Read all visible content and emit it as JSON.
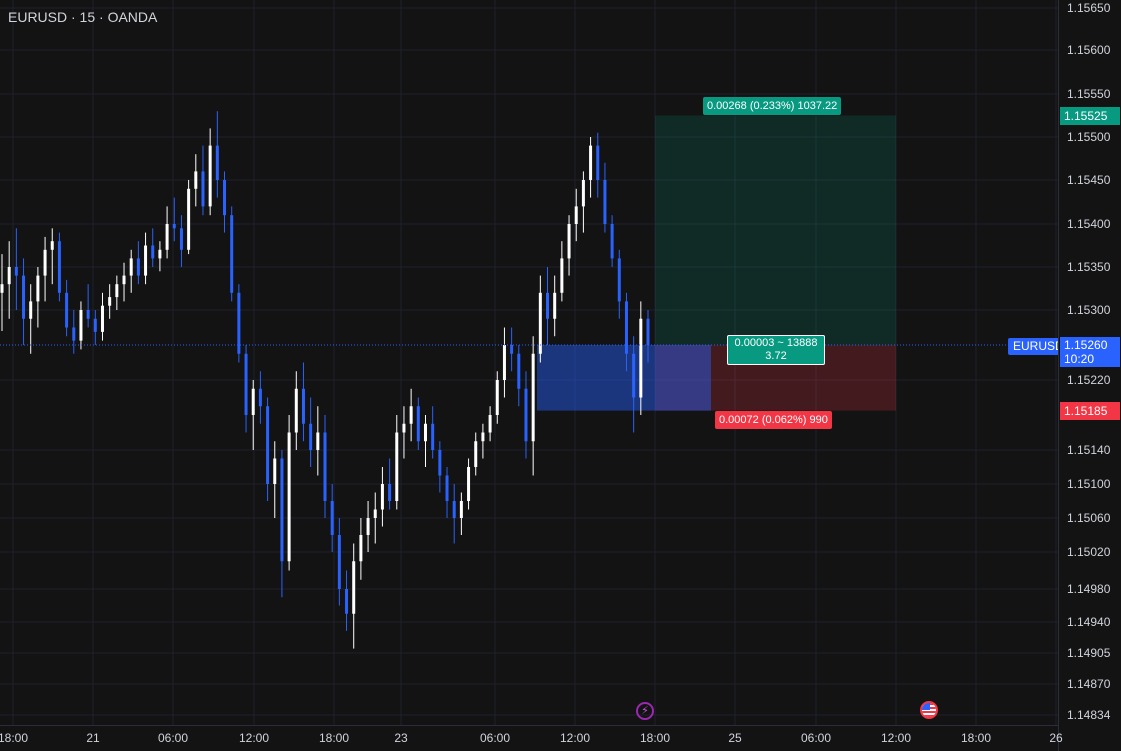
{
  "header": {
    "symbol_title": "EURUSD · 15 · OANDA"
  },
  "price_axis": {
    "ticks": [
      "1.15650",
      "1.15600",
      "1.15550",
      "1.15500",
      "1.15450",
      "1.15400",
      "1.15350",
      "1.15300",
      "1.15220",
      "1.15140",
      "1.15100",
      "1.15060",
      "1.15020",
      "1.14980",
      "1.14940",
      "1.14905",
      "1.14870",
      "1.14834"
    ],
    "target_badge": "1.15525",
    "last_price": "1.15260",
    "countdown": "10:20",
    "stop_badge": "1.15185"
  },
  "time_axis": {
    "ticks": [
      "18:00",
      "21",
      "06:00",
      "12:00",
      "18:00",
      "23",
      "06:00",
      "12:00",
      "18:00",
      "25",
      "06:00",
      "12:00",
      "18:00",
      "26"
    ]
  },
  "position_tool": {
    "target_label": "0.00268 (0.233%) 1037.22",
    "mid_label_line1": "0.00003 ~ 13888",
    "mid_label_line2": "3.72",
    "stop_label": "0.00072 (0.062%) 990"
  },
  "symbol_tag": "EURUSD",
  "events": {
    "bolt_icon": "lightning-icon",
    "flag_icon": "us-flag-icon"
  },
  "colors": {
    "bull": "#ffffff",
    "bear": "#2962ff",
    "target": "#089981",
    "stop": "#f23645",
    "last": "#2962ff"
  },
  "candles": [
    [
      1.1532,
      1.15365,
      1.15276,
      1.1533
    ],
    [
      1.1533,
      1.1538,
      1.1529,
      1.1535
    ],
    [
      1.1535,
      1.15395,
      1.153,
      1.1534
    ],
    [
      1.1534,
      1.1536,
      1.1526,
      1.1529
    ],
    [
      1.1529,
      1.1533,
      1.1525,
      1.1531
    ],
    [
      1.1531,
      1.1535,
      1.1528,
      1.1534
    ],
    [
      1.1534,
      1.15385,
      1.1531,
      1.1537
    ],
    [
      1.1537,
      1.15395,
      1.1533,
      1.1538
    ],
    [
      1.1538,
      1.1539,
      1.1531,
      1.1532
    ],
    [
      1.1532,
      1.15335,
      1.1527,
      1.1528
    ],
    [
      1.1528,
      1.153,
      1.1525,
      1.15265
    ],
    [
      1.15265,
      1.1531,
      1.15255,
      1.153
    ],
    [
      1.153,
      1.1533,
      1.1528,
      1.1529
    ],
    [
      1.1529,
      1.153,
      1.1526,
      1.15275
    ],
    [
      1.15275,
      1.1532,
      1.15265,
      1.15305
    ],
    [
      1.15305,
      1.1533,
      1.1529,
      1.15315
    ],
    [
      1.15315,
      1.1534,
      1.153,
      1.1533
    ],
    [
      1.1533,
      1.15355,
      1.1531,
      1.1534
    ],
    [
      1.1534,
      1.1537,
      1.1532,
      1.1536
    ],
    [
      1.1536,
      1.1538,
      1.1533,
      1.1534
    ],
    [
      1.1534,
      1.1539,
      1.1533,
      1.15375
    ],
    [
      1.15375,
      1.15395,
      1.1535,
      1.1536
    ],
    [
      1.1536,
      1.1538,
      1.15345,
      1.1537
    ],
    [
      1.1537,
      1.1542,
      1.1536,
      1.154
    ],
    [
      1.154,
      1.1543,
      1.1538,
      1.15395
    ],
    [
      1.15395,
      1.1541,
      1.1535,
      1.1537
    ],
    [
      1.1537,
      1.1545,
      1.15365,
      1.1544
    ],
    [
      1.1544,
      1.1548,
      1.1542,
      1.1546
    ],
    [
      1.1546,
      1.1549,
      1.1541,
      1.1542
    ],
    [
      1.1542,
      1.1551,
      1.1541,
      1.1549
    ],
    [
      1.1549,
      1.1553,
      1.1543,
      1.1545
    ],
    [
      1.1545,
      1.1546,
      1.1539,
      1.1541
    ],
    [
      1.1541,
      1.1542,
      1.1531,
      1.1532
    ],
    [
      1.1532,
      1.1533,
      1.1524,
      1.1525
    ],
    [
      1.1525,
      1.1526,
      1.1516,
      1.1518
    ],
    [
      1.1518,
      1.1522,
      1.1514,
      1.1521
    ],
    [
      1.1521,
      1.1523,
      1.1517,
      1.1519
    ],
    [
      1.1519,
      1.152,
      1.1508,
      1.151
    ],
    [
      1.151,
      1.1515,
      1.1506,
      1.1513
    ],
    [
      1.1513,
      1.1514,
      1.1497,
      1.1501
    ],
    [
      1.1501,
      1.1518,
      1.15,
      1.1516
    ],
    [
      1.1516,
      1.1523,
      1.1514,
      1.1521
    ],
    [
      1.1521,
      1.1524,
      1.1515,
      1.1517
    ],
    [
      1.1517,
      1.152,
      1.1512,
      1.1514
    ],
    [
      1.1514,
      1.1519,
      1.1511,
      1.1516
    ],
    [
      1.1516,
      1.1518,
      1.1506,
      1.1508
    ],
    [
      1.1508,
      1.151,
      1.1502,
      1.1504
    ],
    [
      1.1504,
      1.1506,
      1.1496,
      1.1498
    ],
    [
      1.1498,
      1.15,
      1.1493,
      1.1495
    ],
    [
      1.1495,
      1.1503,
      1.1491,
      1.1501
    ],
    [
      1.1501,
      1.1506,
      1.1499,
      1.1504
    ],
    [
      1.1504,
      1.1508,
      1.1502,
      1.1506
    ],
    [
      1.1506,
      1.1509,
      1.1503,
      1.1507
    ],
    [
      1.1507,
      1.1512,
      1.1505,
      1.151
    ],
    [
      1.151,
      1.1513,
      1.1507,
      1.1508
    ],
    [
      1.1508,
      1.1518,
      1.1507,
      1.1516
    ],
    [
      1.1516,
      1.1519,
      1.1513,
      1.1517
    ],
    [
      1.1517,
      1.1521,
      1.1515,
      1.1519
    ],
    [
      1.1519,
      1.152,
      1.1514,
      1.1515
    ],
    [
      1.1515,
      1.1518,
      1.1512,
      1.1517
    ],
    [
      1.1517,
      1.1519,
      1.1513,
      1.1514
    ],
    [
      1.1514,
      1.1515,
      1.1509,
      1.1511
    ],
    [
      1.1511,
      1.1512,
      1.1506,
      1.1508
    ],
    [
      1.1508,
      1.151,
      1.1503,
      1.1506
    ],
    [
      1.1506,
      1.1509,
      1.1504,
      1.1508
    ],
    [
      1.1508,
      1.1513,
      1.1507,
      1.1512
    ],
    [
      1.1512,
      1.1516,
      1.1511,
      1.1515
    ],
    [
      1.1515,
      1.1517,
      1.1513,
      1.1516
    ],
    [
      1.1516,
      1.1519,
      1.1515,
      1.1518
    ],
    [
      1.1518,
      1.1523,
      1.1517,
      1.1522
    ],
    [
      1.1522,
      1.1528,
      1.152,
      1.1526
    ],
    [
      1.1526,
      1.1528,
      1.1523,
      1.1525
    ],
    [
      1.1525,
      1.1526,
      1.1519,
      1.1521
    ],
    [
      1.1521,
      1.1523,
      1.1513,
      1.1515
    ],
    [
      1.1515,
      1.1527,
      1.1511,
      1.1525
    ],
    [
      1.1525,
      1.1534,
      1.1524,
      1.1532
    ],
    [
      1.1532,
      1.1535,
      1.1526,
      1.1529
    ],
    [
      1.1529,
      1.1534,
      1.1527,
      1.1532
    ],
    [
      1.1532,
      1.1538,
      1.1531,
      1.1536
    ],
    [
      1.1536,
      1.1541,
      1.1534,
      1.154
    ],
    [
      1.154,
      1.1544,
      1.1538,
      1.1542
    ],
    [
      1.1542,
      1.1546,
      1.1539,
      1.1545
    ],
    [
      1.1545,
      1.155,
      1.1543,
      1.1549
    ],
    [
      1.1549,
      1.15505,
      1.1543,
      1.1545
    ],
    [
      1.1545,
      1.1547,
      1.1539,
      1.154
    ],
    [
      1.154,
      1.1541,
      1.1535,
      1.1536
    ],
    [
      1.1536,
      1.1537,
      1.1529,
      1.1531
    ],
    [
      1.1531,
      1.1532,
      1.1523,
      1.1525
    ],
    [
      1.1525,
      1.1527,
      1.1516,
      1.152
    ],
    [
      1.152,
      1.1531,
      1.1518,
      1.1529
    ],
    [
      1.1529,
      1.153,
      1.1524,
      1.1526
    ]
  ]
}
